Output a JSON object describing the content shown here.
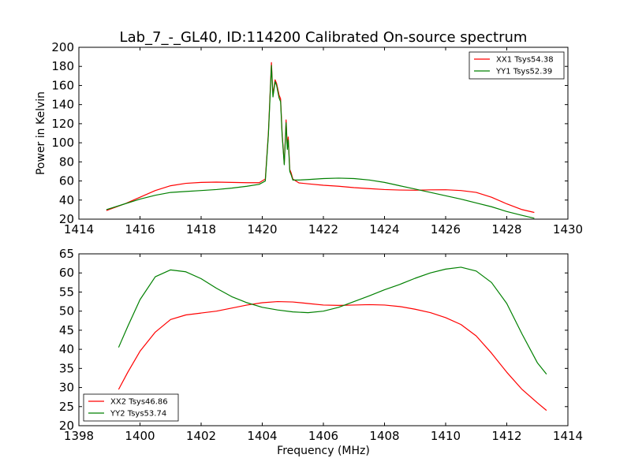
{
  "title": "Lab_7_-_GL40, ID:114200 Calibrated On-source spectrum",
  "colors": {
    "red": "#ff0000",
    "green": "#008000",
    "axes": "#000000",
    "background": "#ffffff"
  },
  "chart_data": [
    {
      "type": "line",
      "ylabel": "Power in Kelvin",
      "xlim": [
        1414,
        1430
      ],
      "ylim": [
        20,
        200
      ],
      "xticks": [
        1414,
        1416,
        1418,
        1420,
        1422,
        1424,
        1426,
        1428,
        1430
      ],
      "yticks": [
        20,
        40,
        60,
        80,
        100,
        120,
        140,
        160,
        180,
        200
      ],
      "legend_position": "top-right",
      "series": [
        {
          "name": "XX1 Tsys54.38",
          "color": "#ff0000",
          "x": [
            1414.9,
            1415.5,
            1416.0,
            1416.5,
            1417.0,
            1417.5,
            1418.0,
            1418.5,
            1419.0,
            1419.5,
            1419.9,
            1420.1,
            1420.2,
            1420.3,
            1420.35,
            1420.42,
            1420.47,
            1420.55,
            1420.6,
            1420.65,
            1420.72,
            1420.78,
            1420.82,
            1420.85,
            1420.9,
            1420.95,
            1421.0,
            1421.2,
            1421.5,
            1422.0,
            1422.5,
            1423.0,
            1423.5,
            1424.0,
            1424.5,
            1425.0,
            1425.5,
            1426.0,
            1426.5,
            1427.0,
            1427.5,
            1428.0,
            1428.5,
            1428.9
          ],
          "y": [
            29,
            36,
            43,
            50,
            55,
            57.5,
            58.5,
            58.8,
            58.5,
            58.2,
            58.2,
            62,
            110,
            184,
            150,
            166,
            162,
            150,
            146,
            110,
            78,
            124,
            95,
            106,
            72,
            68,
            62,
            58,
            57,
            55.5,
            54.5,
            53,
            52,
            51,
            50.5,
            50.3,
            50.7,
            50.8,
            50,
            48,
            43,
            36,
            30,
            27
          ]
        },
        {
          "name": "YY1 Tsys52.39",
          "color": "#008000",
          "x": [
            1414.9,
            1415.5,
            1416.0,
            1416.5,
            1417.0,
            1417.5,
            1418.0,
            1418.5,
            1419.0,
            1419.5,
            1419.9,
            1420.1,
            1420.2,
            1420.3,
            1420.35,
            1420.42,
            1420.47,
            1420.55,
            1420.6,
            1420.65,
            1420.72,
            1420.78,
            1420.82,
            1420.85,
            1420.9,
            1420.95,
            1421.0,
            1421.2,
            1421.5,
            1422.0,
            1422.5,
            1423.0,
            1423.5,
            1424.0,
            1424.5,
            1425.0,
            1425.5,
            1426.0,
            1426.5,
            1427.0,
            1427.5,
            1428.0,
            1428.5,
            1428.9
          ],
          "y": [
            30,
            36,
            41,
            45,
            48,
            49,
            50,
            51,
            52.5,
            54.5,
            56.5,
            60,
            108,
            181,
            148,
            164,
            160,
            147,
            143,
            108,
            77,
            121,
            93,
            103,
            70,
            66,
            61,
            61,
            61.5,
            62.5,
            63,
            62.5,
            61,
            58.5,
            55,
            51.5,
            48,
            44.5,
            41,
            37,
            33,
            28,
            24,
            21
          ]
        }
      ]
    },
    {
      "type": "line",
      "xlabel": "Frequency (MHz)",
      "xlim": [
        1398,
        1414
      ],
      "ylim": [
        20,
        65
      ],
      "xticks": [
        1398,
        1400,
        1402,
        1404,
        1406,
        1408,
        1410,
        1412,
        1414
      ],
      "yticks": [
        20,
        25,
        30,
        35,
        40,
        45,
        50,
        55,
        60,
        65
      ],
      "legend_position": "bottom-left",
      "series": [
        {
          "name": "XX2 Tsys46.86",
          "color": "#ff0000",
          "x": [
            1399.3,
            1399.6,
            1400.0,
            1400.5,
            1401.0,
            1401.5,
            1402.0,
            1402.5,
            1403.0,
            1403.5,
            1404.0,
            1404.5,
            1405.0,
            1405.5,
            1406.0,
            1406.5,
            1407.0,
            1407.5,
            1408.0,
            1408.5,
            1409.0,
            1409.5,
            1410.0,
            1410.5,
            1411.0,
            1411.5,
            1412.0,
            1412.5,
            1413.0,
            1413.3
          ],
          "y": [
            29.5,
            34,
            39.5,
            44.5,
            47.8,
            49,
            49.5,
            50,
            50.8,
            51.6,
            52.2,
            52.5,
            52.4,
            52,
            51.6,
            51.5,
            51.6,
            51.7,
            51.6,
            51.2,
            50.5,
            49.6,
            48.3,
            46.5,
            43.5,
            39,
            34,
            29.5,
            26,
            24
          ]
        },
        {
          "name": "YY2 Tsys53.74",
          "color": "#008000",
          "x": [
            1399.3,
            1399.6,
            1400.0,
            1400.5,
            1401.0,
            1401.5,
            1402.0,
            1402.5,
            1403.0,
            1403.5,
            1404.0,
            1404.5,
            1405.0,
            1405.5,
            1406.0,
            1406.5,
            1407.0,
            1407.5,
            1408.0,
            1408.5,
            1409.0,
            1409.5,
            1410.0,
            1410.5,
            1411.0,
            1411.5,
            1412.0,
            1412.5,
            1413.0,
            1413.3
          ],
          "y": [
            40.5,
            46,
            53,
            59,
            60.8,
            60.3,
            58.5,
            56,
            53.8,
            52.2,
            51,
            50.3,
            49.8,
            49.6,
            50,
            51,
            52.5,
            54,
            55.6,
            57,
            58.6,
            60,
            61,
            61.5,
            60.5,
            57.5,
            52,
            44,
            36.5,
            33.5
          ]
        }
      ]
    }
  ]
}
